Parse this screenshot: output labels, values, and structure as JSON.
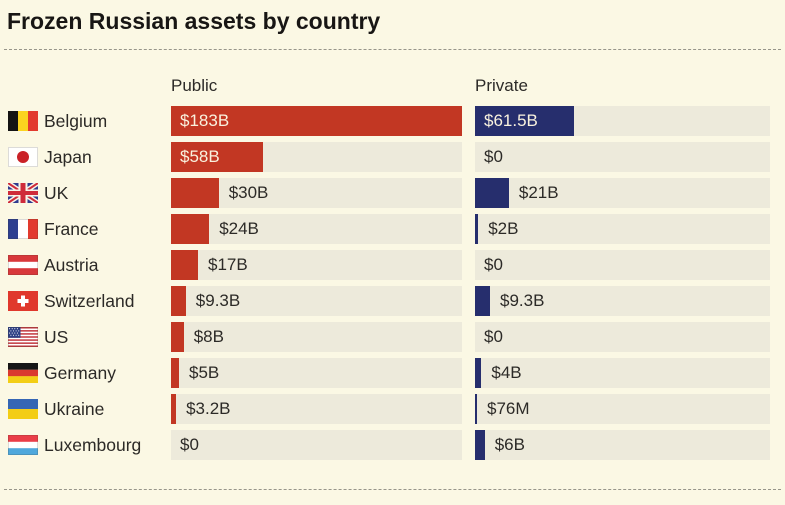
{
  "title": "Frozen Russian assets by country",
  "columns": {
    "public": "Public",
    "private": "Private"
  },
  "colors": {
    "background": "#fbf8e4",
    "track": "#edeadb",
    "public_bar": "#c23723",
    "private_bar": "#262e6d",
    "inside_label": "#f9f2de",
    "text": "#2c2a27"
  },
  "chart_data": {
    "type": "bar",
    "orientation": "horizontal",
    "title": "Frozen Russian assets by country",
    "unit": "USD",
    "value_axis_max": 183,
    "grid": false,
    "legend_position": "column-headers",
    "categories": [
      "Belgium",
      "Japan",
      "UK",
      "France",
      "Austria",
      "Switzerland",
      "US",
      "Germany",
      "Ukraine",
      "Luxembourg"
    ],
    "series": [
      {
        "name": "Public",
        "color": "#c23723",
        "values": [
          183,
          58,
          30,
          24,
          17,
          9.3,
          8,
          5,
          3.2,
          0
        ],
        "labels": [
          "$183B",
          "$58B",
          "$30B",
          "$24B",
          "$17B",
          "$9.3B",
          "$8B",
          "$5B",
          "$3.2B",
          "$0"
        ]
      },
      {
        "name": "Private",
        "color": "#262e6d",
        "values": [
          61.5,
          0,
          21,
          2,
          0,
          9.3,
          0,
          4,
          0.076,
          6
        ],
        "labels": [
          "$61.5B",
          "$0",
          "$21B",
          "$2B",
          "$0",
          "$9.3B",
          "$0",
          "$4B",
          "$76M",
          "$6B"
        ]
      }
    ]
  },
  "rows": [
    {
      "country": "Belgium",
      "flag": "belgium",
      "public": {
        "label": "$183B",
        "value": 183
      },
      "private": {
        "label": "$61.5B",
        "value": 61.5
      }
    },
    {
      "country": "Japan",
      "flag": "japan",
      "public": {
        "label": "$58B",
        "value": 58
      },
      "private": {
        "label": "$0",
        "value": 0
      }
    },
    {
      "country": "UK",
      "flag": "uk",
      "public": {
        "label": "$30B",
        "value": 30
      },
      "private": {
        "label": "$21B",
        "value": 21
      }
    },
    {
      "country": "France",
      "flag": "france",
      "public": {
        "label": "$24B",
        "value": 24
      },
      "private": {
        "label": "$2B",
        "value": 2
      }
    },
    {
      "country": "Austria",
      "flag": "austria",
      "public": {
        "label": "$17B",
        "value": 17
      },
      "private": {
        "label": "$0",
        "value": 0
      }
    },
    {
      "country": "Switzerland",
      "flag": "switzerland",
      "public": {
        "label": "$9.3B",
        "value": 9.3
      },
      "private": {
        "label": "$9.3B",
        "value": 9.3
      }
    },
    {
      "country": "US",
      "flag": "us",
      "public": {
        "label": "$8B",
        "value": 8
      },
      "private": {
        "label": "$0",
        "value": 0
      }
    },
    {
      "country": "Germany",
      "flag": "germany",
      "public": {
        "label": "$5B",
        "value": 5
      },
      "private": {
        "label": "$4B",
        "value": 4
      }
    },
    {
      "country": "Ukraine",
      "flag": "ukraine",
      "public": {
        "label": "$3.2B",
        "value": 3.2
      },
      "private": {
        "label": "$76M",
        "value": 0.076
      }
    },
    {
      "country": "Luxembourg",
      "flag": "luxembourg",
      "public": {
        "label": "$0",
        "value": 0
      },
      "private": {
        "label": "$6B",
        "value": 6
      }
    }
  ]
}
